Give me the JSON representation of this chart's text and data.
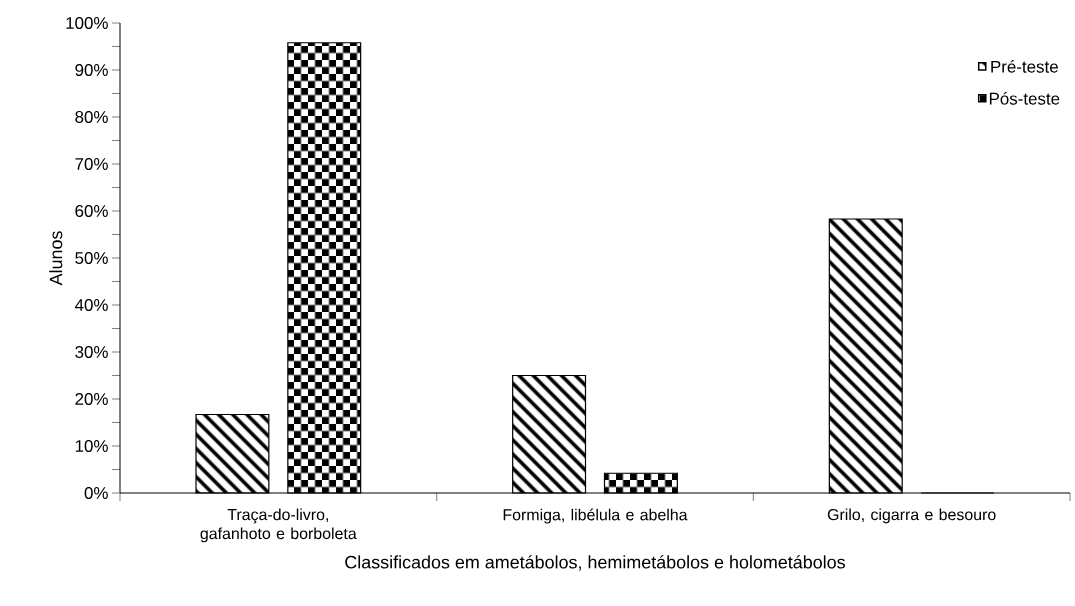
{
  "chart_data": {
    "type": "bar",
    "xlabel": "Classificados em ametábolos, hemimetábolos e holometábolos",
    "ylabel": "Alunos",
    "categories": [
      "Traça-do-livro, gafanhoto e borboleta",
      "Formiga, libélula e abelha",
      "Grilo, cigarra e besouro"
    ],
    "series": [
      {
        "name": "Pré-teste",
        "color": "#000000",
        "values": [
          16.7,
          25,
          58.3
        ]
      },
      {
        "name": "Pós-teste",
        "color": "#000000",
        "values": [
          95.8,
          4.2,
          0
        ]
      }
    ],
    "ylim": [
      0,
      100
    ],
    "yticks": [
      {
        "value": 0,
        "label": "0%"
      },
      {
        "value": 10,
        "label": "10%"
      },
      {
        "value": 20,
        "label": "20%"
      },
      {
        "value": 30,
        "label": "30%"
      },
      {
        "value": 40,
        "label": "40%"
      },
      {
        "value": 50,
        "label": "50%"
      },
      {
        "value": 60,
        "label": "60%"
      },
      {
        "value": 70,
        "label": "70%"
      },
      {
        "value": 80,
        "label": "80%"
      },
      {
        "value": 90,
        "label": "90%"
      },
      {
        "value": 100,
        "label": "100%"
      }
    ],
    "grid": false,
    "legend": "top right"
  }
}
